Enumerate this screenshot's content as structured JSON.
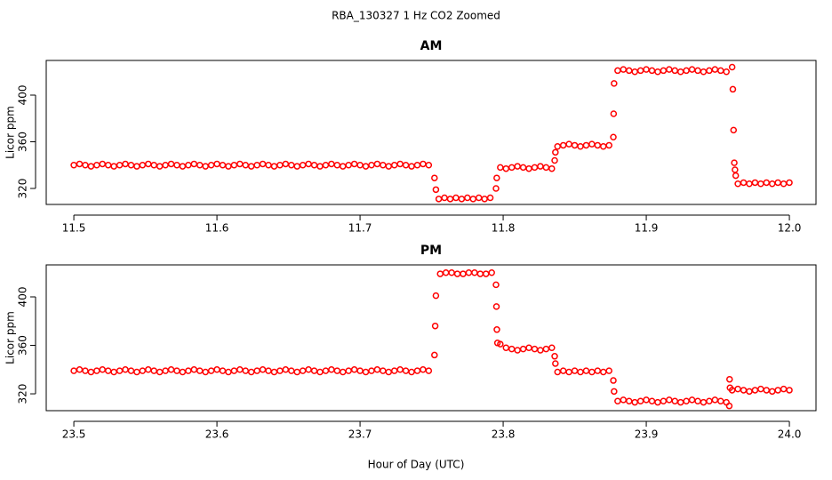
{
  "title": "RBA_130327  1 Hz CO2 Zoomed",
  "xlabel": "Hour of Day (UTC)",
  "chart_data": [
    {
      "type": "scatter",
      "title": "AM",
      "ylabel": "Licor ppm",
      "xlim": [
        11.4807,
        12.0186
      ],
      "ylim": [
        306.3,
        429.7
      ],
      "xticks": [
        11.5,
        11.6,
        11.7,
        11.8,
        11.9,
        {
          "value": 12,
          "label": "12.0"
        }
      ],
      "yticks": [
        320,
        360,
        400
      ],
      "series": [
        {
          "color": "#ff0000",
          "x": [
            11.5,
            11.504,
            11.508,
            11.512,
            11.516,
            11.52,
            11.524,
            11.528,
            11.532,
            11.536,
            11.54,
            11.544,
            11.548,
            11.552,
            11.556,
            11.56,
            11.564,
            11.568,
            11.572,
            11.576,
            11.58,
            11.584,
            11.588,
            11.592,
            11.596,
            11.6,
            11.604,
            11.608,
            11.612,
            11.616,
            11.62,
            11.624,
            11.628,
            11.632,
            11.636,
            11.64,
            11.644,
            11.648,
            11.652,
            11.656,
            11.66,
            11.664,
            11.668,
            11.672,
            11.676,
            11.68,
            11.684,
            11.688,
            11.692,
            11.696,
            11.7,
            11.704,
            11.708,
            11.712,
            11.716,
            11.72,
            11.724,
            11.728,
            11.732,
            11.736,
            11.74,
            11.744,
            11.748,
            11.752,
            11.753,
            11.755,
            11.759,
            11.763,
            11.767,
            11.771,
            11.775,
            11.779,
            11.783,
            11.787,
            11.791,
            11.795,
            11.7955,
            11.798,
            11.802,
            11.806,
            11.81,
            11.814,
            11.818,
            11.822,
            11.826,
            11.83,
            11.834,
            11.836,
            11.8365,
            11.838,
            11.842,
            11.846,
            11.85,
            11.854,
            11.858,
            11.862,
            11.866,
            11.87,
            11.874,
            11.877,
            11.8772,
            11.8775,
            11.88,
            11.884,
            11.888,
            11.892,
            11.896,
            11.9,
            11.904,
            11.908,
            11.912,
            11.916,
            11.92,
            11.924,
            11.928,
            11.932,
            11.936,
            11.94,
            11.944,
            11.948,
            11.952,
            11.956,
            11.96,
            11.9605,
            11.961,
            11.9615,
            11.962,
            11.9625,
            11.964,
            11.968,
            11.972,
            11.976,
            11.98,
            11.984,
            11.988,
            11.992,
            11.996,
            12.0
          ],
          "values": [
            340,
            341,
            340,
            339,
            340,
            341,
            340,
            339,
            340,
            341,
            340,
            339,
            340,
            341,
            340,
            339,
            340,
            341,
            340,
            339,
            340,
            341,
            340,
            339,
            340,
            341,
            340,
            339,
            340,
            341,
            340,
            339,
            340,
            341,
            340,
            339,
            340,
            341,
            340,
            339,
            340,
            341,
            340,
            339,
            340,
            341,
            340,
            339,
            340,
            341,
            340,
            339,
            340,
            341,
            340,
            339,
            340,
            341,
            340,
            339,
            340,
            341,
            340,
            329,
            319,
            311,
            312,
            311,
            312,
            311,
            312,
            311,
            312,
            311,
            312,
            320,
            329,
            338,
            337,
            338,
            339,
            338,
            337,
            338,
            339,
            338,
            337,
            344,
            351,
            356,
            357,
            358,
            357,
            356,
            357,
            358,
            357,
            356,
            357,
            364,
            384,
            410,
            421,
            422,
            421,
            420,
            421,
            422,
            421,
            420,
            421,
            422,
            421,
            420,
            421,
            422,
            421,
            420,
            421,
            422,
            421,
            420,
            424,
            405,
            370,
            342,
            336,
            331,
            324,
            325,
            324,
            325,
            324,
            325,
            324,
            325,
            324,
            325
          ]
        }
      ]
    },
    {
      "type": "scatter",
      "title": "PM",
      "ylabel": "Licor ppm",
      "xlim": [
        23.4807,
        24.0186
      ],
      "ylim": [
        306.1,
        426.4
      ],
      "xticks": [
        23.5,
        23.6,
        23.7,
        23.8,
        23.9,
        {
          "value": 24,
          "label": "24.0"
        }
      ],
      "yticks": [
        320,
        360,
        400
      ],
      "series": [
        {
          "color": "#ff0000",
          "x": [
            23.5,
            23.504,
            23.508,
            23.512,
            23.516,
            23.52,
            23.524,
            23.528,
            23.532,
            23.536,
            23.54,
            23.544,
            23.548,
            23.552,
            23.556,
            23.56,
            23.564,
            23.568,
            23.572,
            23.576,
            23.58,
            23.584,
            23.588,
            23.592,
            23.596,
            23.6,
            23.604,
            23.608,
            23.612,
            23.616,
            23.62,
            23.624,
            23.628,
            23.632,
            23.636,
            23.64,
            23.644,
            23.648,
            23.652,
            23.656,
            23.66,
            23.664,
            23.668,
            23.672,
            23.676,
            23.68,
            23.684,
            23.688,
            23.692,
            23.696,
            23.7,
            23.704,
            23.708,
            23.712,
            23.716,
            23.72,
            23.724,
            23.728,
            23.732,
            23.736,
            23.74,
            23.744,
            23.748,
            23.752,
            23.7525,
            23.753,
            23.756,
            23.76,
            23.764,
            23.768,
            23.772,
            23.776,
            23.78,
            23.784,
            23.788,
            23.792,
            23.795,
            23.7953,
            23.7956,
            23.796,
            23.798,
            23.802,
            23.806,
            23.81,
            23.814,
            23.818,
            23.822,
            23.826,
            23.83,
            23.834,
            23.836,
            23.8365,
            23.838,
            23.842,
            23.846,
            23.85,
            23.854,
            23.858,
            23.862,
            23.866,
            23.87,
            23.874,
            23.877,
            23.8775,
            23.88,
            23.884,
            23.888,
            23.892,
            23.896,
            23.9,
            23.904,
            23.908,
            23.912,
            23.916,
            23.92,
            23.924,
            23.928,
            23.932,
            23.936,
            23.94,
            23.944,
            23.948,
            23.952,
            23.956,
            23.958,
            23.9582,
            23.9585,
            23.96,
            23.964,
            23.968,
            23.972,
            23.976,
            23.98,
            23.984,
            23.988,
            23.992,
            23.996,
            24.0
          ],
          "values": [
            339,
            340,
            339,
            338,
            339,
            340,
            339,
            338,
            339,
            340,
            339,
            338,
            339,
            340,
            339,
            338,
            339,
            340,
            339,
            338,
            339,
            340,
            339,
            338,
            339,
            340,
            339,
            338,
            339,
            340,
            339,
            338,
            339,
            340,
            339,
            338,
            339,
            340,
            339,
            338,
            339,
            340,
            339,
            338,
            339,
            340,
            339,
            338,
            339,
            340,
            339,
            338,
            339,
            340,
            339,
            338,
            339,
            340,
            339,
            338,
            339,
            340,
            339,
            352,
            376,
            401,
            419,
            420,
            420,
            419,
            419,
            420,
            420,
            419,
            419,
            420,
            410,
            392,
            373,
            362,
            361,
            358,
            357,
            356,
            357,
            358,
            357,
            356,
            357,
            358,
            351,
            345,
            338,
            339,
            338,
            339,
            338,
            339,
            338,
            339,
            338,
            339,
            331,
            322,
            314,
            315,
            314,
            313,
            314,
            315,
            314,
            313,
            314,
            315,
            314,
            313,
            314,
            315,
            314,
            313,
            314,
            315,
            314,
            313,
            310,
            332,
            325,
            323,
            324,
            323,
            322,
            323,
            324,
            323,
            322,
            323,
            324,
            323
          ]
        }
      ]
    }
  ]
}
